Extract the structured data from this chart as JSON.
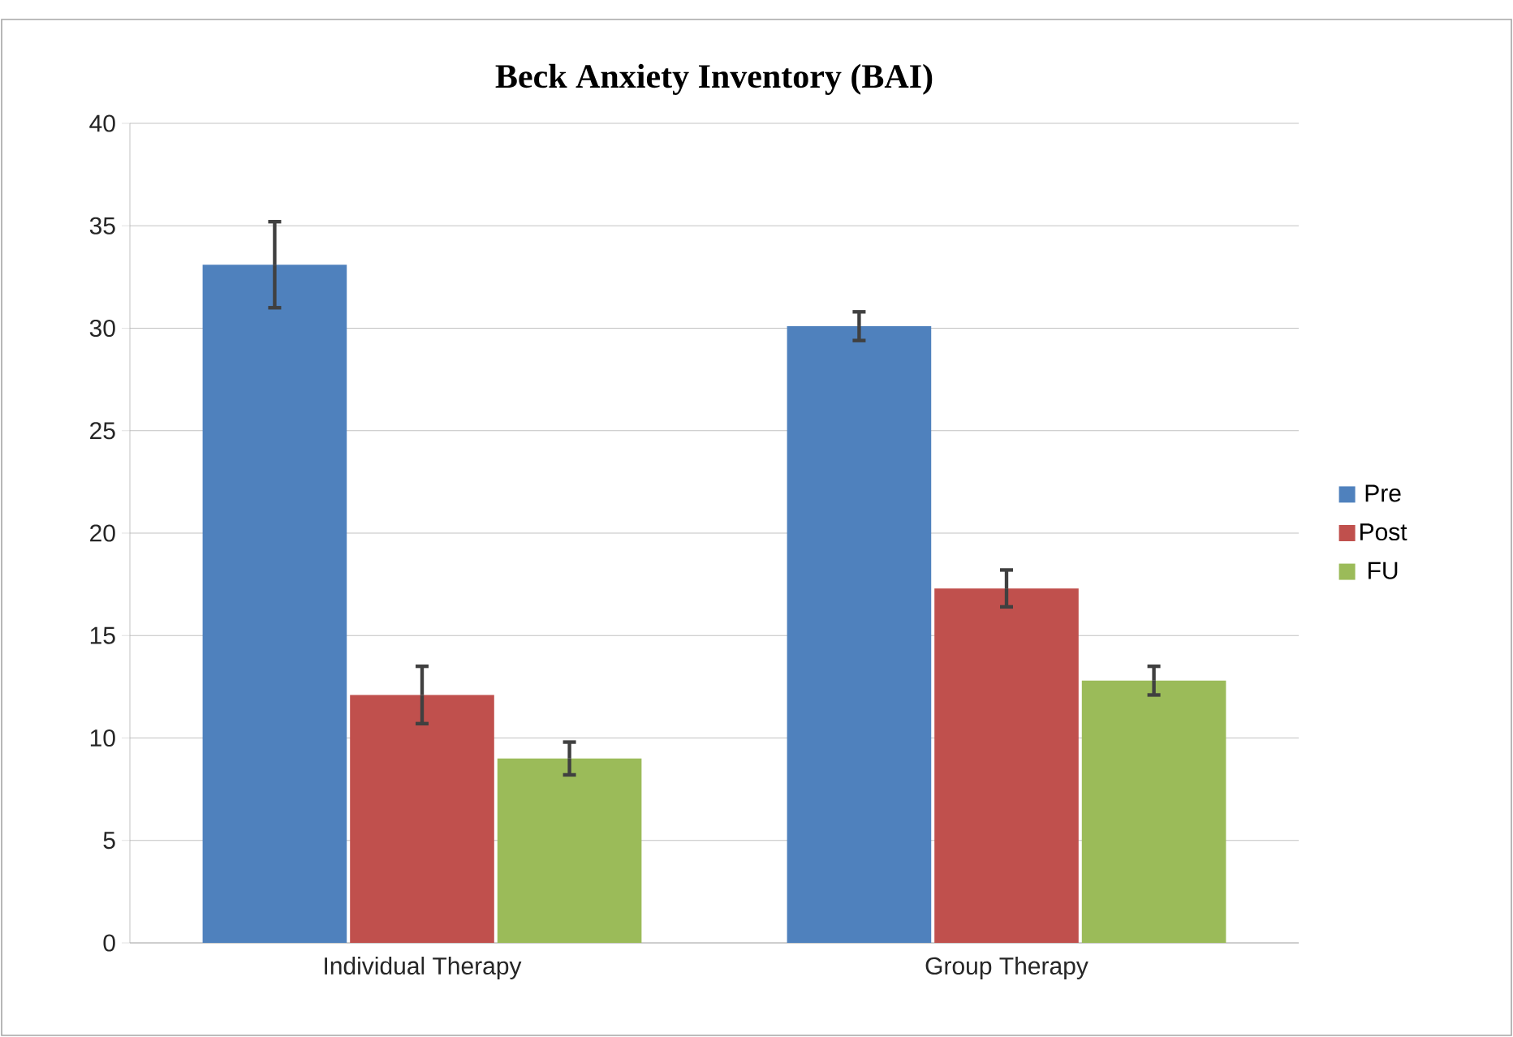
{
  "chart_data": {
    "type": "bar",
    "title": "Beck Anxiety Inventory (BAI)",
    "categories": [
      "Individual Therapy",
      "Group Therapy"
    ],
    "series": [
      {
        "name": "Pre",
        "color": "#4f81bd",
        "values": [
          33.1,
          30.1
        ],
        "errors": [
          2.1,
          0.7
        ]
      },
      {
        "name": "Post",
        "color": "#c0504d",
        "values": [
          12.1,
          17.3
        ],
        "errors": [
          1.4,
          0.9
        ]
      },
      {
        "name": "FU",
        "color": "#9bbb59",
        "values": [
          9.0,
          12.8
        ],
        "errors": [
          0.8,
          0.7
        ]
      }
    ],
    "ylim": [
      0,
      40
    ],
    "yticks": [
      0,
      5,
      10,
      15,
      20,
      25,
      30,
      35,
      40
    ],
    "grid": "y",
    "legend": "right"
  }
}
